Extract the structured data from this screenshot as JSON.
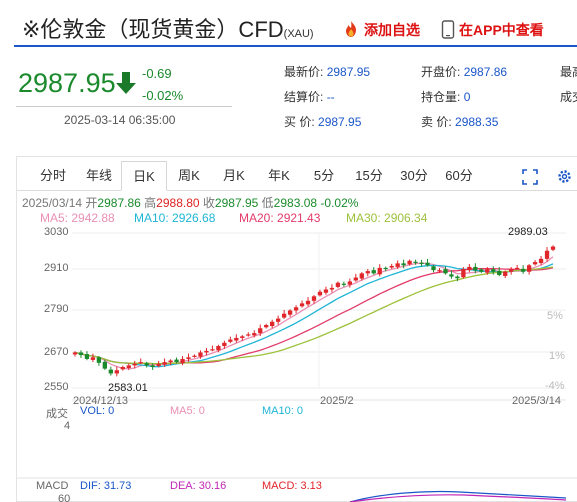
{
  "header": {
    "title": "※伦敦金（现货黄金）CFD",
    "title_sub": "(XAU)",
    "fav_label": "添加自选",
    "app_label": "在APP中查看"
  },
  "quote": {
    "price": "2987.95",
    "change": "-0.69",
    "change_pct": "-0.02%",
    "timestamp": "2025-03-14 06:35:00",
    "direction": "down"
  },
  "info": {
    "latest_label": "最新价:",
    "latest_value": "2987.95",
    "settle_label": "结算价:",
    "settle_value": "--",
    "buy_label": "买  价:",
    "buy_value": "2987.95",
    "open_label": "开盘价:",
    "open_value": "2987.86",
    "hold_label": "持仓量:",
    "hold_value": "0",
    "sell_label": "卖  价:",
    "sell_value": "2988.35",
    "high_label": "最高",
    "deal_label": "成交"
  },
  "tabs": [
    "分时",
    "年线",
    "日K",
    "周K",
    "月K",
    "年K",
    "5分",
    "15分",
    "30分",
    "60分"
  ],
  "active_tab": 2,
  "icons": {
    "expand": "expand-icon",
    "settings": "gear-icon",
    "fav": "flame-icon",
    "app": "phone-icon",
    "arrow": "down-arrow-icon"
  },
  "colors": {
    "up": "#e0252b",
    "down": "#1a8a2c",
    "accent": "#1a56c8",
    "ma5": "#e98fb4",
    "ma10": "#1fb5d6",
    "ma20": "#e23b6a",
    "ma30": "#9dc13b"
  },
  "chart_info": {
    "date": "2025/03/14",
    "open_label": "开",
    "open": "2987.86",
    "high_label": "高",
    "high": "2988.80",
    "close_label": "收",
    "close": "2987.95",
    "low_label": "低",
    "low": "2983.08",
    "pct": "-0.02%",
    "ma5": "MA5: 2942.88",
    "ma10": "MA10: 2926.68",
    "ma20": "MA20: 2921.43",
    "ma30": "MA30: 2906.34"
  },
  "chart_data": {
    "type": "candlestick",
    "title": "",
    "xlabel": "",
    "ylabel": "",
    "y_ticks": [
      "3030",
      "2910",
      "2790",
      "2670",
      "2550"
    ],
    "y_range": [
      2550,
      3030
    ],
    "pct_ticks": [
      "5%",
      "1%",
      "-4%"
    ],
    "x_ticks": [
      "2024/12/13",
      "2025/2",
      "2025/3/14"
    ],
    "max_label": "2989.03",
    "min_label": "2583.01",
    "grid": true,
    "closes": [
      2660,
      2652,
      2640,
      2645,
      2628,
      2610,
      2595,
      2605,
      2615,
      2620,
      2625,
      2630,
      2620,
      2615,
      2625,
      2630,
      2635,
      2630,
      2640,
      2645,
      2650,
      2660,
      2665,
      2670,
      2680,
      2690,
      2700,
      2705,
      2710,
      2716,
      2720,
      2735,
      2745,
      2755,
      2765,
      2780,
      2790,
      2800,
      2812,
      2820,
      2834,
      2848,
      2855,
      2860,
      2876,
      2870,
      2880,
      2892,
      2905,
      2912,
      2905,
      2922,
      2920,
      2928,
      2936,
      2930,
      2944,
      2938,
      2935,
      2930,
      2915,
      2915,
      2905,
      2895,
      2890,
      2918,
      2925,
      2914,
      2910,
      2918,
      2910,
      2900,
      2910,
      2918,
      2922,
      2910,
      2930,
      2940,
      2950,
      2975,
      2988
    ]
  },
  "volume": {
    "section_label": "成交",
    "vol_label": "VOL: 0",
    "ma5_label": "MA5: 0",
    "ma10_label": "MA10: 0",
    "axis_value": "4"
  },
  "macd": {
    "section_label": "MACD",
    "dif_label": "DIF: 31.73",
    "dea_label": "DEA: 30.16",
    "macd_label": "MACD: 3.13",
    "axis_value": "60"
  }
}
